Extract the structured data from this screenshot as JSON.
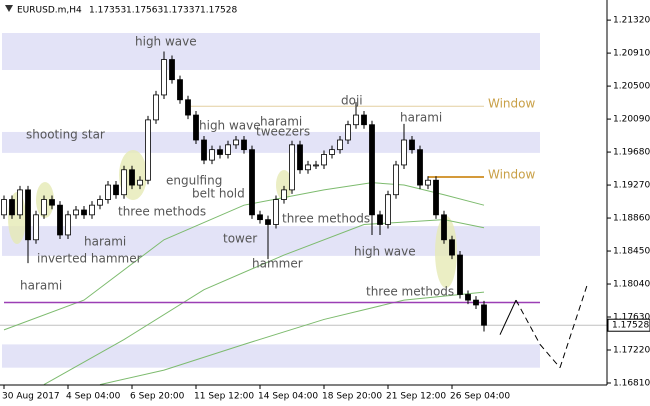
{
  "chart_data": {
    "type": "candlestick",
    "symbol": "EURUSD.m,H4",
    "quote": [
      "1.17353",
      "1.17563",
      "1.17337",
      "1.17528"
    ],
    "ylim": [
      1.16785,
      1.2157
    ],
    "yticks": [
      {
        "value": 1.2132,
        "label": "1.21320"
      },
      {
        "value": 1.2091,
        "label": "1.20910"
      },
      {
        "value": 1.205,
        "label": "1.20500"
      },
      {
        "value": 1.2009,
        "label": "1.20090"
      },
      {
        "value": 1.1968,
        "label": "1.19680"
      },
      {
        "value": 1.1927,
        "label": "1.19270"
      },
      {
        "value": 1.1886,
        "label": "1.18860"
      },
      {
        "value": 1.1845,
        "label": "1.18450"
      },
      {
        "value": 1.1804,
        "label": "1.18040"
      },
      {
        "value": 1.1763,
        "label": "1.17630"
      },
      {
        "value": 1.1722,
        "label": "1.17220"
      },
      {
        "value": 1.1681,
        "label": "1.16810"
      }
    ],
    "current_price": 1.17528,
    "categories": [
      "30 Aug 2017",
      null,
      null,
      null,
      null,
      null,
      null,
      null,
      "4 Sep 04:00",
      null,
      null,
      null,
      null,
      null,
      null,
      null,
      "6 Sep 20:00",
      null,
      null,
      null,
      null,
      null,
      null,
      null,
      "11 Sep 12:00",
      null,
      null,
      null,
      null,
      null,
      null,
      null,
      "14 Sep 04:00",
      null,
      null,
      null,
      null,
      null,
      null,
      null,
      "18 Sep 20:00",
      null,
      null,
      null,
      null,
      null,
      null,
      null,
      "21 Sep 12:00",
      null,
      null,
      null,
      null,
      null,
      null,
      null,
      "26 Sep 04:00",
      null,
      null,
      null,
      null
    ],
    "open": [
      1.189,
      1.1909,
      1.189,
      1.1921,
      1.1859,
      1.189,
      1.1909,
      1.1902,
      1.1865,
      1.189,
      1.1896,
      1.189,
      1.1902,
      1.1909,
      1.1927,
      1.1915,
      1.1946,
      1.1927,
      1.1933,
      1.2008,
      1.2039,
      1.2083,
      1.2058,
      1.2033,
      1.2014,
      1.1983,
      1.1958,
      1.1971,
      1.1965,
      1.1977,
      1.1983,
      1.1971,
      1.189,
      1.1884,
      1.1878,
      1.1909,
      1.1921,
      1.1977,
      1.1946,
      1.1952,
      1.1952,
      1.1965,
      1.1971,
      1.1983,
      1.2002,
      1.2014,
      1.2002,
      1.189,
      1.1878,
      1.1915,
      1.1952,
      1.1983,
      1.1971,
      1.1927,
      1.1933,
      1.189,
      1.1859,
      1.184,
      1.1791,
      1.1784,
      1.1778
    ],
    "high": [
      1.1914,
      1.1914,
      1.1926,
      1.1926,
      1.1895,
      1.1914,
      1.1914,
      1.1907,
      1.1895,
      1.1901,
      1.1901,
      1.1907,
      1.1914,
      1.1932,
      1.1932,
      1.1951,
      1.1951,
      1.1938,
      1.2013,
      1.2044,
      1.2093,
      1.2088,
      1.2063,
      1.2038,
      1.2019,
      1.1988,
      1.1976,
      1.1976,
      1.1982,
      1.1988,
      1.1988,
      1.1976,
      1.1895,
      1.1889,
      1.1914,
      1.1926,
      1.1982,
      1.1982,
      1.1957,
      1.1957,
      1.197,
      1.1976,
      1.1988,
      1.2007,
      1.203,
      1.2019,
      1.2007,
      1.1895,
      1.192,
      1.1957,
      1.2003,
      1.1988,
      1.1976,
      1.1938,
      1.1938,
      1.1895,
      1.1864,
      1.1845,
      1.1796,
      1.1789,
      1.1783
    ],
    "low": [
      1.1885,
      1.1885,
      1.1885,
      1.183,
      1.1854,
      1.1885,
      1.1897,
      1.186,
      1.186,
      1.1885,
      1.1885,
      1.1885,
      1.1897,
      1.1904,
      1.191,
      1.191,
      1.1922,
      1.1922,
      1.1928,
      1.2003,
      1.2034,
      1.2053,
      1.2028,
      1.2009,
      1.1978,
      1.1953,
      1.1953,
      1.196,
      1.196,
      1.1972,
      1.1966,
      1.1885,
      1.1879,
      1.1835,
      1.1873,
      1.1904,
      1.1916,
      1.1941,
      1.1941,
      1.1947,
      1.1947,
      1.196,
      1.1966,
      1.1978,
      1.1997,
      1.1997,
      1.1865,
      1.1865,
      1.1873,
      1.191,
      1.1947,
      1.1966,
      1.1922,
      1.1922,
      1.1885,
      1.1854,
      1.1835,
      1.1786,
      1.1779,
      1.1773,
      1.1745
    ],
    "close": [
      1.1909,
      1.189,
      1.1921,
      1.1859,
      1.189,
      1.1909,
      1.1902,
      1.1865,
      1.189,
      1.1896,
      1.189,
      1.1902,
      1.1909,
      1.1927,
      1.1915,
      1.1946,
      1.1927,
      1.1933,
      1.2008,
      1.2039,
      1.2083,
      1.2058,
      1.2033,
      1.2014,
      1.1983,
      1.1958,
      1.1971,
      1.1965,
      1.1977,
      1.1983,
      1.1971,
      1.189,
      1.1884,
      1.1878,
      1.1909,
      1.1921,
      1.1977,
      1.1946,
      1.1952,
      1.1952,
      1.1965,
      1.1971,
      1.1983,
      1.2002,
      1.2014,
      1.2002,
      1.189,
      1.1878,
      1.1915,
      1.1952,
      1.1983,
      1.1971,
      1.1927,
      1.1933,
      1.189,
      1.1859,
      1.184,
      1.1791,
      1.1784,
      1.1778,
      1.17528
    ],
    "moving_averages": [
      {
        "color": "#7dbb6e",
        "x": [
          0,
          10,
          20,
          30,
          40,
          46,
          50,
          55,
          60
        ],
        "values": [
          1.1747,
          1.1784,
          1.1859,
          1.1902,
          1.1921,
          1.193,
          1.1927,
          1.1915,
          1.1902
        ]
      },
      {
        "color": "#7dbb6e",
        "x": [
          5,
          15,
          25,
          35,
          45,
          55,
          60
        ],
        "values": [
          1.1679,
          1.1735,
          1.1797,
          1.184,
          1.1878,
          1.1884,
          1.1874
        ]
      },
      {
        "color": "#7dbb6e",
        "x": [
          12,
          20,
          30,
          40,
          50,
          60
        ],
        "values": [
          1.1679,
          1.1697,
          1.1729,
          1.176,
          1.1784,
          1.1794
        ]
      }
    ],
    "zones": [
      [
        1.207,
        1.2116
      ],
      [
        1.1967,
        1.1993
      ],
      [
        1.1839,
        1.1876
      ],
      [
        1.17,
        1.1729
      ]
    ],
    "zone_color": "#e3e3f7",
    "levels": [
      {
        "value": 1.2025,
        "color": "#e3cfa0",
        "from": 23,
        "to": 60,
        "label": "Window"
      },
      {
        "value": 1.1937,
        "color": "#d49a3a",
        "from": 53,
        "to": 60,
        "label": "Window"
      },
      {
        "value": 1.1781,
        "color": "#9b3fb5",
        "from": 0,
        "to": 67
      }
    ],
    "forecast": {
      "x": [
        62,
        64,
        67,
        69.5,
        73
      ],
      "values": [
        1.1741,
        1.1784,
        1.1729,
        1.17,
        1.1806
      ]
    },
    "annotations": [
      "high wave",
      "shooting star",
      "harami",
      "inverted hammer",
      "harami",
      "three methods",
      "engulfing",
      "belt hold",
      "high wave",
      "harami",
      "tweezers",
      "tower",
      "hammer",
      "three methods",
      "doji",
      "harami",
      "high wave",
      "three methods"
    ]
  }
}
